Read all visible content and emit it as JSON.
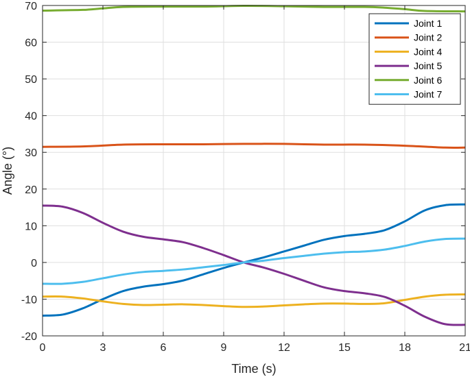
{
  "chart_data": {
    "type": "line",
    "xlabel": "Time (s)",
    "ylabel": "Angle (°)",
    "xlim": [
      0,
      21
    ],
    "ylim": [
      -20,
      70
    ],
    "xticks": [
      0,
      3,
      6,
      9,
      12,
      15,
      18,
      21
    ],
    "yticks": [
      -20,
      -10,
      0,
      10,
      20,
      30,
      40,
      50,
      60,
      70
    ],
    "grid": true,
    "legend_position": "top-right",
    "series": [
      {
        "name": "Joint 1",
        "color": "#0072BD",
        "points": [
          [
            0,
            -14.5
          ],
          [
            1,
            -14.2
          ],
          [
            2,
            -12.5
          ],
          [
            3,
            -10.0
          ],
          [
            4,
            -7.8
          ],
          [
            5,
            -6.6
          ],
          [
            6,
            -5.9
          ],
          [
            7,
            -4.9
          ],
          [
            8,
            -3.2
          ],
          [
            9,
            -1.5
          ],
          [
            10,
            0.0
          ],
          [
            11,
            1.4
          ],
          [
            12,
            3.0
          ],
          [
            13,
            4.6
          ],
          [
            14,
            6.2
          ],
          [
            15,
            7.2
          ],
          [
            16,
            7.8
          ],
          [
            17,
            8.8
          ],
          [
            18,
            11.2
          ],
          [
            19,
            14.2
          ],
          [
            20,
            15.6
          ],
          [
            21,
            15.8
          ]
        ]
      },
      {
        "name": "Joint 2",
        "color": "#D95319",
        "points": [
          [
            0,
            31.5
          ],
          [
            2,
            31.6
          ],
          [
            4,
            32.1
          ],
          [
            6,
            32.2
          ],
          [
            8,
            32.2
          ],
          [
            10,
            32.3
          ],
          [
            12,
            32.3
          ],
          [
            14,
            32.1
          ],
          [
            16,
            32.1
          ],
          [
            18,
            31.8
          ],
          [
            20,
            31.3
          ],
          [
            21,
            31.3
          ]
        ]
      },
      {
        "name": "Joint 4",
        "color": "#EDB120",
        "points": [
          [
            0,
            -9.3
          ],
          [
            1,
            -9.3
          ],
          [
            2,
            -9.8
          ],
          [
            3,
            -10.6
          ],
          [
            4,
            -11.3
          ],
          [
            5,
            -11.6
          ],
          [
            6,
            -11.5
          ],
          [
            7,
            -11.4
          ],
          [
            8,
            -11.6
          ],
          [
            9,
            -11.9
          ],
          [
            10,
            -12.1
          ],
          [
            11,
            -12.0
          ],
          [
            12,
            -11.7
          ],
          [
            13,
            -11.4
          ],
          [
            14,
            -11.2
          ],
          [
            15,
            -11.2
          ],
          [
            16,
            -11.3
          ],
          [
            17,
            -11.1
          ],
          [
            18,
            -10.2
          ],
          [
            19,
            -9.3
          ],
          [
            20,
            -8.8
          ],
          [
            21,
            -8.7
          ]
        ]
      },
      {
        "name": "Joint 5",
        "color": "#7E2F8E",
        "points": [
          [
            0,
            15.5
          ],
          [
            1,
            15.2
          ],
          [
            2,
            13.5
          ],
          [
            3,
            10.8
          ],
          [
            4,
            8.4
          ],
          [
            5,
            7.0
          ],
          [
            6,
            6.3
          ],
          [
            7,
            5.5
          ],
          [
            8,
            3.9
          ],
          [
            9,
            2.0
          ],
          [
            10,
            0.0
          ],
          [
            11,
            -1.4
          ],
          [
            12,
            -3.1
          ],
          [
            13,
            -5.0
          ],
          [
            14,
            -6.8
          ],
          [
            15,
            -7.8
          ],
          [
            16,
            -8.4
          ],
          [
            17,
            -9.4
          ],
          [
            18,
            -11.8
          ],
          [
            19,
            -14.8
          ],
          [
            20,
            -16.8
          ],
          [
            21,
            -17.0
          ]
        ]
      },
      {
        "name": "Joint 6",
        "color": "#77AC30",
        "points": [
          [
            0,
            68.6
          ],
          [
            2,
            68.8
          ],
          [
            3,
            69.2
          ],
          [
            4,
            69.6
          ],
          [
            6,
            69.7
          ],
          [
            8,
            69.7
          ],
          [
            10,
            69.9
          ],
          [
            12,
            69.8
          ],
          [
            14,
            69.6
          ],
          [
            16,
            69.6
          ],
          [
            17,
            69.4
          ],
          [
            18,
            69.0
          ],
          [
            19,
            68.5
          ],
          [
            21,
            68.4
          ]
        ]
      },
      {
        "name": "Joint 7",
        "color": "#4DBEEE",
        "points": [
          [
            0,
            -5.8
          ],
          [
            1,
            -5.8
          ],
          [
            2,
            -5.3
          ],
          [
            3,
            -4.3
          ],
          [
            4,
            -3.3
          ],
          [
            5,
            -2.6
          ],
          [
            6,
            -2.3
          ],
          [
            7,
            -1.9
          ],
          [
            8,
            -1.3
          ],
          [
            9,
            -0.7
          ],
          [
            10,
            0.0
          ],
          [
            11,
            0.5
          ],
          [
            12,
            1.2
          ],
          [
            13,
            1.8
          ],
          [
            14,
            2.4
          ],
          [
            15,
            2.8
          ],
          [
            16,
            3.0
          ],
          [
            17,
            3.5
          ],
          [
            18,
            4.5
          ],
          [
            19,
            5.7
          ],
          [
            20,
            6.4
          ],
          [
            21,
            6.5
          ]
        ]
      }
    ]
  }
}
